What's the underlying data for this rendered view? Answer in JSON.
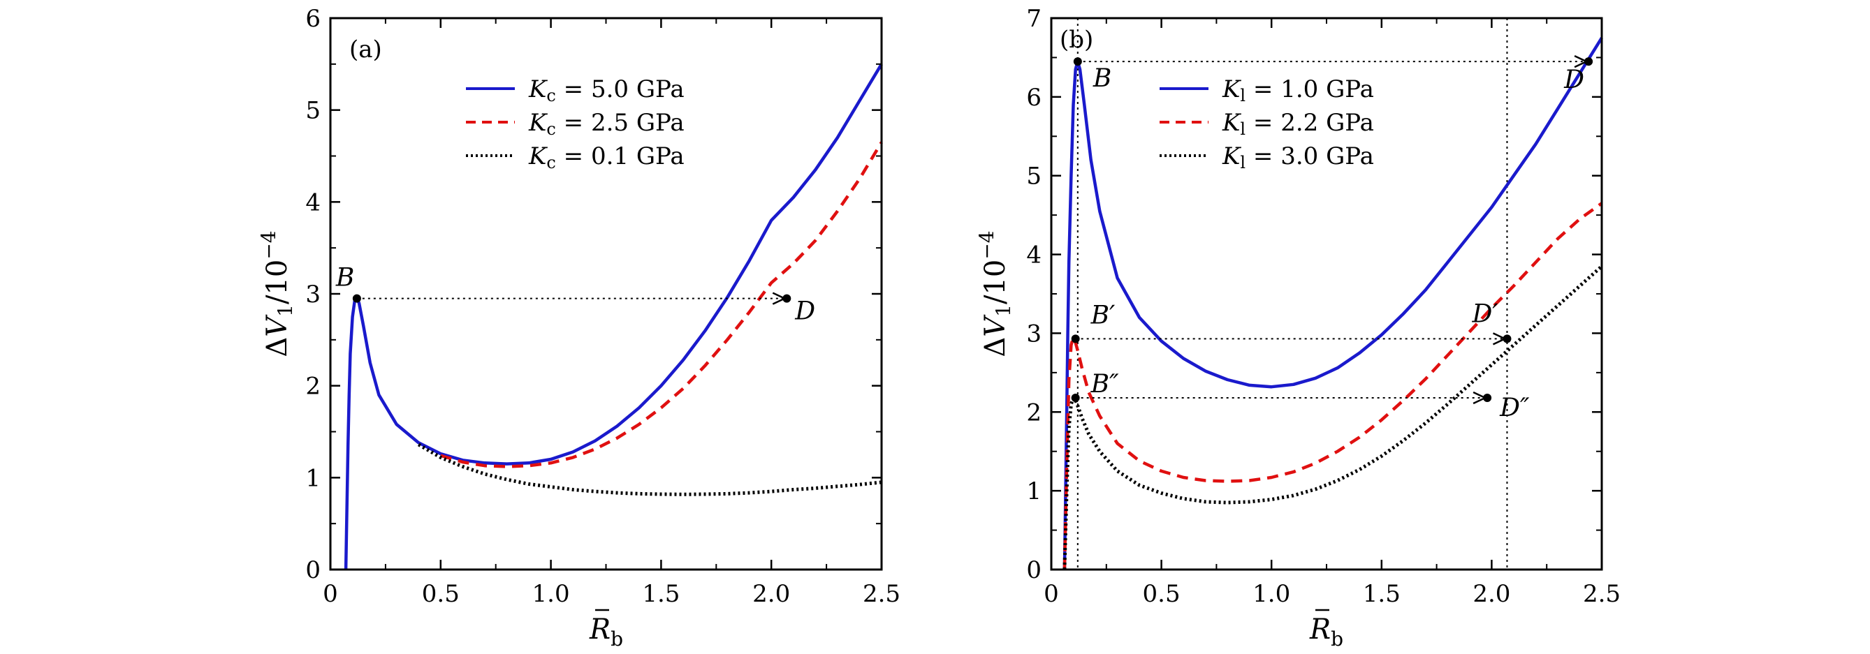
{
  "chart_data": [
    {
      "type": "line",
      "panel_label": "(a)",
      "xlabel": "R̄b",
      "ylabel": "ΔV1/10−4",
      "xlim": [
        0,
        2.5
      ],
      "ylim": [
        0,
        6
      ],
      "xticks": [
        "0",
        "0.5",
        "1.0",
        "1.5",
        "2.0",
        "2.5"
      ],
      "yticks": [
        "0",
        "1",
        "2",
        "3",
        "4",
        "5",
        "6"
      ],
      "legend_position": "top-center",
      "series": [
        {
          "name": "Kc = 5.0 GPa",
          "style": "solid",
          "color": "#1a1acc",
          "x": [
            0.07,
            0.075,
            0.08,
            0.085,
            0.09,
            0.1,
            0.11,
            0.12,
            0.13,
            0.15,
            0.18,
            0.22,
            0.3,
            0.4,
            0.5,
            0.6,
            0.7,
            0.8,
            0.9,
            1.0,
            1.1,
            1.2,
            1.3,
            1.4,
            1.5,
            1.6,
            1.7,
            1.8,
            1.9,
            2.0,
            2.1,
            2.2,
            2.3,
            2.4,
            2.5
          ],
          "y": [
            0.0,
            0.7,
            1.35,
            1.9,
            2.35,
            2.75,
            2.92,
            2.95,
            2.9,
            2.65,
            2.25,
            1.9,
            1.58,
            1.38,
            1.26,
            1.19,
            1.16,
            1.15,
            1.16,
            1.2,
            1.28,
            1.4,
            1.56,
            1.76,
            2.0,
            2.28,
            2.6,
            2.96,
            3.36,
            3.8,
            4.05,
            4.35,
            4.7,
            5.1,
            5.5
          ]
        },
        {
          "name": "Kc = 2.5 GPa",
          "style": "dashed",
          "color": "#e01010",
          "x": [
            0.5,
            0.6,
            0.7,
            0.8,
            0.9,
            1.0,
            1.1,
            1.2,
            1.3,
            1.4,
            1.5,
            1.6,
            1.7,
            1.8,
            1.9,
            2.0,
            2.1,
            2.2,
            2.3,
            2.4,
            2.5
          ],
          "y": [
            1.24,
            1.17,
            1.13,
            1.12,
            1.13,
            1.16,
            1.22,
            1.31,
            1.43,
            1.58,
            1.76,
            1.97,
            2.22,
            2.5,
            2.8,
            3.12,
            3.33,
            3.58,
            3.9,
            4.25,
            4.65
          ]
        },
        {
          "name": "Kc = 0.1 GPa",
          "style": "dotted",
          "color": "#000000",
          "x": [
            0.4,
            0.5,
            0.6,
            0.7,
            0.8,
            0.9,
            1.0,
            1.1,
            1.2,
            1.3,
            1.4,
            1.5,
            1.6,
            1.7,
            1.8,
            1.9,
            2.0,
            2.1,
            2.2,
            2.3,
            2.4,
            2.5
          ],
          "y": [
            1.36,
            1.22,
            1.12,
            1.04,
            0.98,
            0.93,
            0.9,
            0.87,
            0.85,
            0.835,
            0.825,
            0.82,
            0.818,
            0.82,
            0.825,
            0.835,
            0.85,
            0.87,
            0.885,
            0.905,
            0.925,
            0.95
          ]
        }
      ],
      "annotations": [
        {
          "label": "B",
          "x": 0.12,
          "y": 2.95
        },
        {
          "label": "D",
          "x": 2.07,
          "y": 2.95
        }
      ],
      "arrows": [
        {
          "from": [
            0.12,
            2.95
          ],
          "to": [
            2.07,
            2.95
          ]
        }
      ]
    },
    {
      "type": "line",
      "panel_label": "(b)",
      "xlabel": "R̄b",
      "ylabel": "ΔV1/10−4",
      "xlim": [
        0,
        2.5
      ],
      "ylim": [
        0,
        7
      ],
      "xticks": [
        "0",
        "0.5",
        "1.0",
        "1.5",
        "2.0",
        "2.5"
      ],
      "yticks": [
        "0",
        "1",
        "2",
        "3",
        "4",
        "5",
        "6",
        "7"
      ],
      "legend_position": "top-center",
      "series": [
        {
          "name": "Kl = 1.0 GPa",
          "style": "solid",
          "color": "#1a1acc",
          "x": [
            0.06,
            0.065,
            0.07,
            0.075,
            0.08,
            0.09,
            0.1,
            0.11,
            0.12,
            0.13,
            0.15,
            0.18,
            0.22,
            0.3,
            0.4,
            0.5,
            0.6,
            0.7,
            0.8,
            0.9,
            1.0,
            1.1,
            1.2,
            1.3,
            1.4,
            1.5,
            1.6,
            1.7,
            1.8,
            1.9,
            2.0,
            2.1,
            2.2,
            2.3,
            2.4,
            2.5
          ],
          "y": [
            0.0,
            1.0,
            2.0,
            3.0,
            3.9,
            5.0,
            5.9,
            6.35,
            6.45,
            6.35,
            5.9,
            5.2,
            4.55,
            3.7,
            3.2,
            2.9,
            2.68,
            2.52,
            2.41,
            2.34,
            2.32,
            2.35,
            2.43,
            2.56,
            2.75,
            2.98,
            3.25,
            3.55,
            3.9,
            4.25,
            4.6,
            5.0,
            5.4,
            5.85,
            6.3,
            6.75
          ]
        },
        {
          "name": "Kl = 2.2 GPa",
          "style": "dashed",
          "color": "#e01010",
          "x": [
            0.06,
            0.07,
            0.08,
            0.09,
            0.1,
            0.11,
            0.12,
            0.14,
            0.17,
            0.22,
            0.3,
            0.4,
            0.5,
            0.6,
            0.7,
            0.8,
            0.9,
            1.0,
            1.1,
            1.2,
            1.3,
            1.4,
            1.5,
            1.6,
            1.7,
            1.8,
            1.9,
            2.0,
            2.1,
            2.2,
            2.3,
            2.4,
            2.5
          ],
          "y": [
            0.0,
            1.3,
            2.4,
            2.85,
            2.95,
            2.88,
            2.78,
            2.55,
            2.25,
            1.95,
            1.6,
            1.38,
            1.25,
            1.17,
            1.13,
            1.12,
            1.13,
            1.17,
            1.24,
            1.35,
            1.5,
            1.68,
            1.9,
            2.15,
            2.42,
            2.72,
            3.02,
            3.32,
            3.6,
            3.9,
            4.2,
            4.45,
            4.65
          ]
        },
        {
          "name": "Kl = 3.0 GPa",
          "style": "dotted",
          "color": "#000000",
          "x": [
            0.06,
            0.07,
            0.08,
            0.09,
            0.1,
            0.11,
            0.12,
            0.14,
            0.17,
            0.22,
            0.3,
            0.4,
            0.5,
            0.6,
            0.7,
            0.8,
            0.9,
            1.0,
            1.1,
            1.2,
            1.3,
            1.4,
            1.5,
            1.6,
            1.7,
            1.8,
            1.9,
            2.0,
            2.1,
            2.2,
            2.3,
            2.4,
            2.5
          ],
          "y": [
            0.0,
            1.0,
            1.8,
            2.1,
            2.18,
            2.15,
            2.08,
            1.92,
            1.72,
            1.5,
            1.25,
            1.07,
            0.97,
            0.9,
            0.86,
            0.85,
            0.86,
            0.89,
            0.94,
            1.02,
            1.13,
            1.27,
            1.44,
            1.64,
            1.86,
            2.1,
            2.35,
            2.6,
            2.85,
            3.1,
            3.35,
            3.6,
            3.85
          ]
        }
      ],
      "annotations": [
        {
          "label": "B",
          "x": 0.12,
          "y": 6.45
        },
        {
          "label": "D",
          "x": 2.44,
          "y": 6.45
        },
        {
          "label": "B′",
          "x": 0.11,
          "y": 2.93
        },
        {
          "label": "D′",
          "x": 2.07,
          "y": 2.93
        },
        {
          "label": "B″",
          "x": 0.11,
          "y": 2.18
        },
        {
          "label": "D″",
          "x": 1.98,
          "y": 2.18
        }
      ],
      "arrows": [
        {
          "from": [
            0.12,
            6.45
          ],
          "to": [
            2.44,
            6.45
          ]
        },
        {
          "from": [
            0.11,
            2.93
          ],
          "to": [
            2.07,
            2.93
          ]
        },
        {
          "from": [
            0.11,
            2.18
          ],
          "to": [
            1.98,
            2.18
          ]
        }
      ],
      "vlines": [
        0.12,
        2.07
      ]
    }
  ]
}
